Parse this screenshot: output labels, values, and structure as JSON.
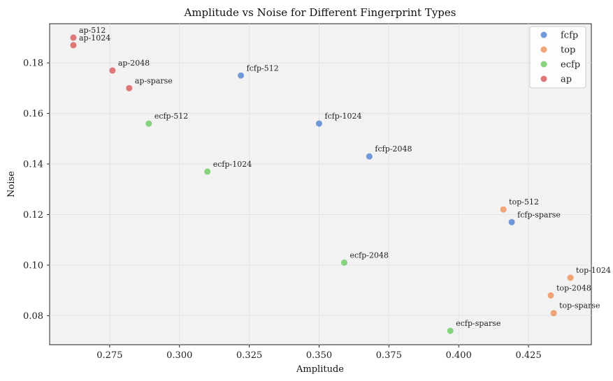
{
  "chart_data": {
    "type": "scatter",
    "title": "Amplitude vs Noise for Different Fingerprint Types",
    "xlabel": "Amplitude",
    "ylabel": "Noise",
    "xlim": [
      0.2535,
      0.4475
    ],
    "ylim": [
      0.0685,
      0.1955
    ],
    "xticks": [
      "0.275",
      "0.300",
      "0.325",
      "0.350",
      "0.375",
      "0.400",
      "0.425"
    ],
    "yticks": [
      "0.08",
      "0.10",
      "0.12",
      "0.14",
      "0.16",
      "0.18"
    ],
    "grid": true,
    "legend_position": "top-right",
    "series": [
      {
        "name": "fcfp",
        "color": "#4f7fd1",
        "points": [
          {
            "label": "fcfp-512",
            "x": 0.322,
            "y": 0.175
          },
          {
            "label": "fcfp-1024",
            "x": 0.35,
            "y": 0.156
          },
          {
            "label": "fcfp-2048",
            "x": 0.368,
            "y": 0.143
          },
          {
            "label": "fcfp-sparse",
            "x": 0.419,
            "y": 0.117
          }
        ]
      },
      {
        "name": "top",
        "color": "#ee8e56",
        "points": [
          {
            "label": "top-512",
            "x": 0.416,
            "y": 0.122
          },
          {
            "label": "top-1024",
            "x": 0.44,
            "y": 0.095
          },
          {
            "label": "top-2048",
            "x": 0.433,
            "y": 0.088
          },
          {
            "label": "top-sparse",
            "x": 0.434,
            "y": 0.081
          }
        ]
      },
      {
        "name": "ecfp",
        "color": "#6ac960",
        "points": [
          {
            "label": "ecfp-512",
            "x": 0.289,
            "y": 0.156
          },
          {
            "label": "ecfp-1024",
            "x": 0.31,
            "y": 0.137
          },
          {
            "label": "ecfp-2048",
            "x": 0.359,
            "y": 0.101
          },
          {
            "label": "ecfp-sparse",
            "x": 0.397,
            "y": 0.074
          }
        ]
      },
      {
        "name": "ap",
        "color": "#d9585b",
        "points": [
          {
            "label": "ap-512",
            "x": 0.262,
            "y": 0.19
          },
          {
            "label": "ap-1024",
            "x": 0.262,
            "y": 0.187
          },
          {
            "label": "ap-2048",
            "x": 0.276,
            "y": 0.177
          },
          {
            "label": "ap-sparse",
            "x": 0.282,
            "y": 0.17
          }
        ]
      }
    ]
  }
}
